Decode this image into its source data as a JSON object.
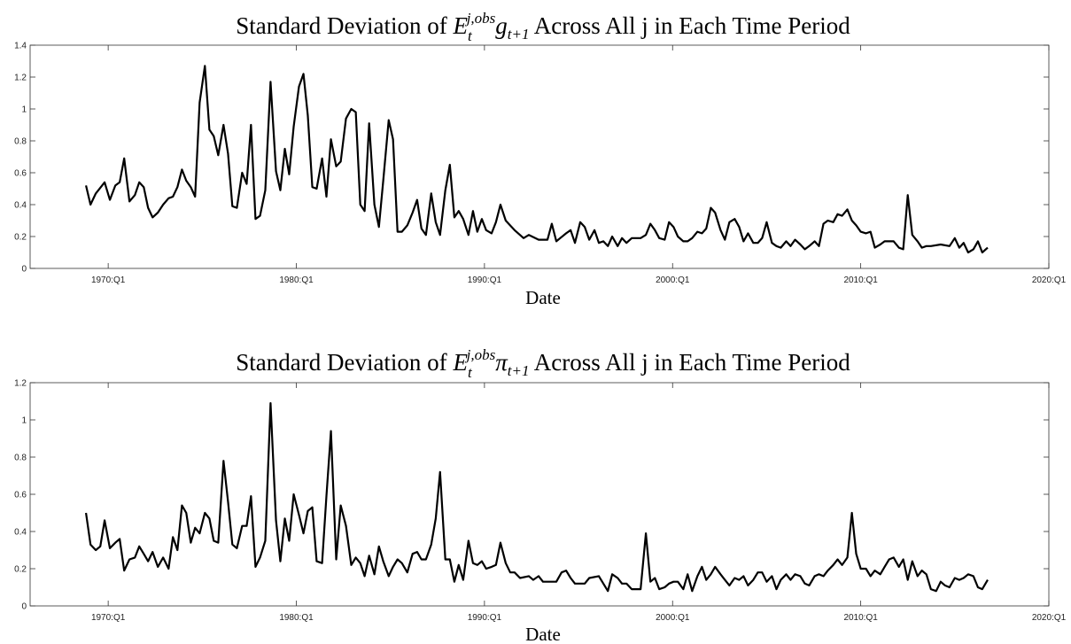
{
  "chart_data": [
    {
      "type": "line",
      "title": [
        "Standard Deviation of ",
        "E",
        "t",
        "j,obs",
        "g",
        "t+1",
        " Across All j in Each Time Period"
      ],
      "xlabel": "Date",
      "color": "#000000",
      "xlim": [
        1965.85,
        2020
      ],
      "ylim": [
        0,
        1.4
      ],
      "xticks": [
        {
          "value": 1970,
          "label": "1970:Q1"
        },
        {
          "value": 1980,
          "label": "1980:Q1"
        },
        {
          "value": 1990,
          "label": "1990:Q1"
        },
        {
          "value": 2000,
          "label": "2000:Q1"
        },
        {
          "value": 2010,
          "label": "2010:Q1"
        },
        {
          "value": 2020,
          "label": "2020:Q1"
        }
      ],
      "yticks": [
        0,
        0.2,
        0.4,
        0.6,
        0.8,
        1,
        1.2,
        1.4
      ],
      "x": [
        1968.82,
        1969.06,
        1969.34,
        1969.81,
        1970.09,
        1970.38,
        1970.61,
        1970.85,
        1971.13,
        1971.42,
        1971.65,
        1971.89,
        1972.12,
        1972.36,
        1972.64,
        1972.92,
        1973.21,
        1973.44,
        1973.68,
        1973.92,
        1974.15,
        1974.39,
        1974.62,
        1974.86,
        1975.14,
        1975.38,
        1975.61,
        1975.85,
        1976.13,
        1976.37,
        1976.6,
        1976.84,
        1977.12,
        1977.36,
        1977.59,
        1977.83,
        1978.07,
        1978.35,
        1978.63,
        1978.92,
        1979.15,
        1979.39,
        1979.62,
        1979.86,
        1980.14,
        1980.38,
        1980.61,
        1980.85,
        1981.08,
        1981.37,
        1981.6,
        1981.84,
        1982.12,
        1982.36,
        1982.64,
        1982.92,
        1983.16,
        1983.4,
        1983.63,
        1983.87,
        1984.15,
        1984.39,
        1984.62,
        1984.91,
        1985.14,
        1985.38,
        1985.61,
        1985.9,
        1986.18,
        1986.42,
        1986.65,
        1986.89,
        1987.17,
        1987.41,
        1987.64,
        1987.92,
        1988.16,
        1988.4,
        1988.63,
        1988.87,
        1989.15,
        1989.39,
        1989.62,
        1989.86,
        1990.09,
        1990.38,
        1990.61,
        1990.85,
        1991.13,
        1991.6,
        1992.08,
        1992.36,
        1992.88,
        1993.35,
        1993.58,
        1993.82,
        1994.34,
        1994.58,
        1994.81,
        1995.09,
        1995.33,
        1995.57,
        1995.85,
        1996.08,
        1996.32,
        1996.56,
        1996.79,
        1997.08,
        1997.31,
        1997.55,
        1997.83,
        1998.3,
        1998.58,
        1998.82,
        1999.06,
        1999.29,
        1999.58,
        1999.81,
        2000.05,
        2000.28,
        2000.57,
        2000.8,
        2001.04,
        2001.32,
        2001.56,
        2001.79,
        2002.03,
        2002.26,
        2002.55,
        2002.78,
        2003.02,
        2003.3,
        2003.54,
        2003.77,
        2004.01,
        2004.29,
        2004.53,
        2004.76,
        2005.0,
        2005.28,
        2005.52,
        2005.75,
        2006.04,
        2006.27,
        2006.51,
        2006.79,
        2007.03,
        2007.26,
        2007.55,
        2007.78,
        2008.02,
        2008.25,
        2008.54,
        2008.77,
        2009.01,
        2009.29,
        2009.53,
        2009.76,
        2010.0,
        2010.28,
        2010.52,
        2010.75,
        2011.04,
        2011.27,
        2011.51,
        2011.75,
        2012.03,
        2012.26,
        2012.5,
        2012.74,
        2013.02,
        2013.25,
        2013.49,
        2013.73,
        2014.25,
        2014.72,
        2015.0,
        2015.24,
        2015.47,
        2015.71,
        2015.99,
        2016.23,
        2016.46,
        2016.75
      ],
      "values": [
        0.52,
        0.4,
        0.47,
        0.54,
        0.43,
        0.52,
        0.54,
        0.69,
        0.42,
        0.46,
        0.54,
        0.51,
        0.38,
        0.32,
        0.35,
        0.4,
        0.44,
        0.45,
        0.51,
        0.62,
        0.55,
        0.51,
        0.45,
        1.04,
        1.27,
        0.87,
        0.83,
        0.71,
        0.9,
        0.72,
        0.39,
        0.38,
        0.6,
        0.53,
        0.9,
        0.31,
        0.33,
        0.49,
        1.17,
        0.61,
        0.49,
        0.75,
        0.59,
        0.89,
        1.14,
        1.22,
        0.96,
        0.51,
        0.5,
        0.69,
        0.45,
        0.81,
        0.64,
        0.67,
        0.94,
        1.0,
        0.98,
        0.4,
        0.36,
        0.91,
        0.4,
        0.26,
        0.55,
        0.93,
        0.81,
        0.23,
        0.23,
        0.27,
        0.35,
        0.43,
        0.25,
        0.21,
        0.47,
        0.29,
        0.21,
        0.49,
        0.65,
        0.32,
        0.36,
        0.31,
        0.21,
        0.36,
        0.23,
        0.31,
        0.24,
        0.22,
        0.29,
        0.4,
        0.3,
        0.24,
        0.19,
        0.21,
        0.18,
        0.18,
        0.28,
        0.17,
        0.22,
        0.24,
        0.16,
        0.29,
        0.26,
        0.18,
        0.24,
        0.16,
        0.17,
        0.14,
        0.2,
        0.14,
        0.19,
        0.16,
        0.19,
        0.19,
        0.21,
        0.28,
        0.24,
        0.19,
        0.18,
        0.29,
        0.26,
        0.2,
        0.17,
        0.17,
        0.19,
        0.23,
        0.22,
        0.25,
        0.38,
        0.35,
        0.24,
        0.18,
        0.29,
        0.31,
        0.26,
        0.17,
        0.22,
        0.16,
        0.16,
        0.19,
        0.29,
        0.16,
        0.14,
        0.13,
        0.17,
        0.14,
        0.18,
        0.15,
        0.12,
        0.14,
        0.17,
        0.14,
        0.28,
        0.3,
        0.29,
        0.34,
        0.33,
        0.37,
        0.3,
        0.27,
        0.23,
        0.22,
        0.23,
        0.13,
        0.15,
        0.17,
        0.17,
        0.17,
        0.13,
        0.12,
        0.46,
        0.21,
        0.17,
        0.13,
        0.14,
        0.14,
        0.15,
        0.14,
        0.19,
        0.13,
        0.16,
        0.1,
        0.12,
        0.17,
        0.1,
        0.13
      ]
    },
    {
      "type": "line",
      "title": [
        "Standard Deviation of ",
        "E",
        "t",
        "j,obs",
        "π",
        "t+1",
        " Across All j in Each Time Period"
      ],
      "xlabel": "Date",
      "color": "#000000",
      "xlim": [
        1965.85,
        2020
      ],
      "ylim": [
        0,
        1.2
      ],
      "xticks": [
        {
          "value": 1970,
          "label": "1970:Q1"
        },
        {
          "value": 1980,
          "label": "1980:Q1"
        },
        {
          "value": 1990,
          "label": "1990:Q1"
        },
        {
          "value": 2000,
          "label": "2000:Q1"
        },
        {
          "value": 2010,
          "label": "2010:Q1"
        },
        {
          "value": 2020,
          "label": "2020:Q1"
        }
      ],
      "yticks": [
        0,
        0.2,
        0.4,
        0.6,
        0.8,
        1,
        1.2
      ],
      "x": [
        1968.82,
        1969.06,
        1969.34,
        1969.58,
        1969.81,
        1970.09,
        1970.38,
        1970.61,
        1970.85,
        1971.13,
        1971.42,
        1971.65,
        1971.89,
        1972.12,
        1972.36,
        1972.64,
        1972.92,
        1973.21,
        1973.44,
        1973.68,
        1973.92,
        1974.15,
        1974.39,
        1974.62,
        1974.86,
        1975.14,
        1975.38,
        1975.61,
        1975.85,
        1976.13,
        1976.37,
        1976.6,
        1976.84,
        1977.12,
        1977.36,
        1977.59,
        1977.83,
        1978.07,
        1978.35,
        1978.63,
        1978.92,
        1979.15,
        1979.39,
        1979.62,
        1979.86,
        1980.14,
        1980.38,
        1980.61,
        1980.85,
        1981.08,
        1981.37,
        1981.6,
        1981.84,
        1982.12,
        1982.36,
        1982.64,
        1982.92,
        1983.16,
        1983.4,
        1983.63,
        1983.87,
        1984.15,
        1984.39,
        1984.62,
        1984.91,
        1985.14,
        1985.38,
        1985.61,
        1985.9,
        1986.18,
        1986.42,
        1986.65,
        1986.89,
        1987.17,
        1987.41,
        1987.64,
        1987.92,
        1988.16,
        1988.4,
        1988.63,
        1988.87,
        1989.15,
        1989.39,
        1989.62,
        1989.86,
        1990.09,
        1990.38,
        1990.61,
        1990.85,
        1991.13,
        1991.37,
        1991.6,
        1991.89,
        1992.36,
        1992.59,
        1992.88,
        1993.11,
        1993.58,
        1993.82,
        1994.1,
        1994.34,
        1994.58,
        1994.81,
        1995.33,
        1995.57,
        1996.08,
        1996.32,
        1996.56,
        1996.79,
        1997.08,
        1997.31,
        1997.55,
        1997.83,
        1998.3,
        1998.58,
        1998.82,
        1999.06,
        1999.29,
        1999.58,
        1999.81,
        2000.05,
        2000.28,
        2000.57,
        2000.8,
        2001.04,
        2001.32,
        2001.56,
        2001.79,
        2002.03,
        2002.26,
        2002.55,
        2002.78,
        2003.02,
        2003.3,
        2003.54,
        2003.77,
        2004.01,
        2004.29,
        2004.53,
        2004.76,
        2005.0,
        2005.28,
        2005.52,
        2005.75,
        2006.04,
        2006.27,
        2006.51,
        2006.79,
        2007.03,
        2007.26,
        2007.55,
        2007.78,
        2008.02,
        2008.25,
        2008.54,
        2008.77,
        2009.01,
        2009.29,
        2009.53,
        2009.76,
        2010.0,
        2010.28,
        2010.52,
        2010.75,
        2011.04,
        2011.27,
        2011.51,
        2011.75,
        2012.03,
        2012.26,
        2012.5,
        2012.74,
        2013.02,
        2013.25,
        2013.49,
        2013.73,
        2014.01,
        2014.25,
        2014.48,
        2014.72,
        2015.0,
        2015.24,
        2015.47,
        2015.71,
        2015.99,
        2016.23,
        2016.46,
        2016.75
      ],
      "values": [
        0.5,
        0.33,
        0.3,
        0.32,
        0.46,
        0.31,
        0.34,
        0.36,
        0.19,
        0.25,
        0.26,
        0.32,
        0.28,
        0.24,
        0.29,
        0.21,
        0.26,
        0.2,
        0.37,
        0.3,
        0.54,
        0.5,
        0.34,
        0.42,
        0.39,
        0.5,
        0.47,
        0.35,
        0.34,
        0.78,
        0.56,
        0.33,
        0.31,
        0.43,
        0.43,
        0.59,
        0.21,
        0.26,
        0.35,
        1.09,
        0.46,
        0.24,
        0.47,
        0.35,
        0.6,
        0.49,
        0.39,
        0.51,
        0.53,
        0.24,
        0.23,
        0.59,
        0.94,
        0.25,
        0.54,
        0.43,
        0.22,
        0.26,
        0.23,
        0.16,
        0.27,
        0.17,
        0.32,
        0.24,
        0.16,
        0.21,
        0.25,
        0.23,
        0.18,
        0.28,
        0.29,
        0.25,
        0.25,
        0.33,
        0.47,
        0.72,
        0.25,
        0.25,
        0.13,
        0.22,
        0.14,
        0.35,
        0.23,
        0.22,
        0.24,
        0.2,
        0.21,
        0.22,
        0.34,
        0.23,
        0.18,
        0.18,
        0.15,
        0.16,
        0.14,
        0.16,
        0.13,
        0.13,
        0.13,
        0.18,
        0.19,
        0.15,
        0.12,
        0.12,
        0.15,
        0.16,
        0.12,
        0.08,
        0.17,
        0.15,
        0.12,
        0.12,
        0.09,
        0.09,
        0.39,
        0.13,
        0.15,
        0.09,
        0.1,
        0.12,
        0.13,
        0.13,
        0.09,
        0.17,
        0.08,
        0.16,
        0.21,
        0.14,
        0.17,
        0.21,
        0.17,
        0.14,
        0.11,
        0.15,
        0.14,
        0.16,
        0.11,
        0.14,
        0.18,
        0.18,
        0.13,
        0.16,
        0.09,
        0.14,
        0.17,
        0.14,
        0.17,
        0.16,
        0.12,
        0.11,
        0.16,
        0.17,
        0.16,
        0.19,
        0.22,
        0.25,
        0.22,
        0.26,
        0.5,
        0.28,
        0.2,
        0.2,
        0.16,
        0.19,
        0.17,
        0.21,
        0.25,
        0.26,
        0.21,
        0.25,
        0.14,
        0.24,
        0.16,
        0.19,
        0.17,
        0.09,
        0.08,
        0.13,
        0.11,
        0.1,
        0.15,
        0.14,
        0.15,
        0.17,
        0.16,
        0.1,
        0.09,
        0.14
      ]
    }
  ]
}
